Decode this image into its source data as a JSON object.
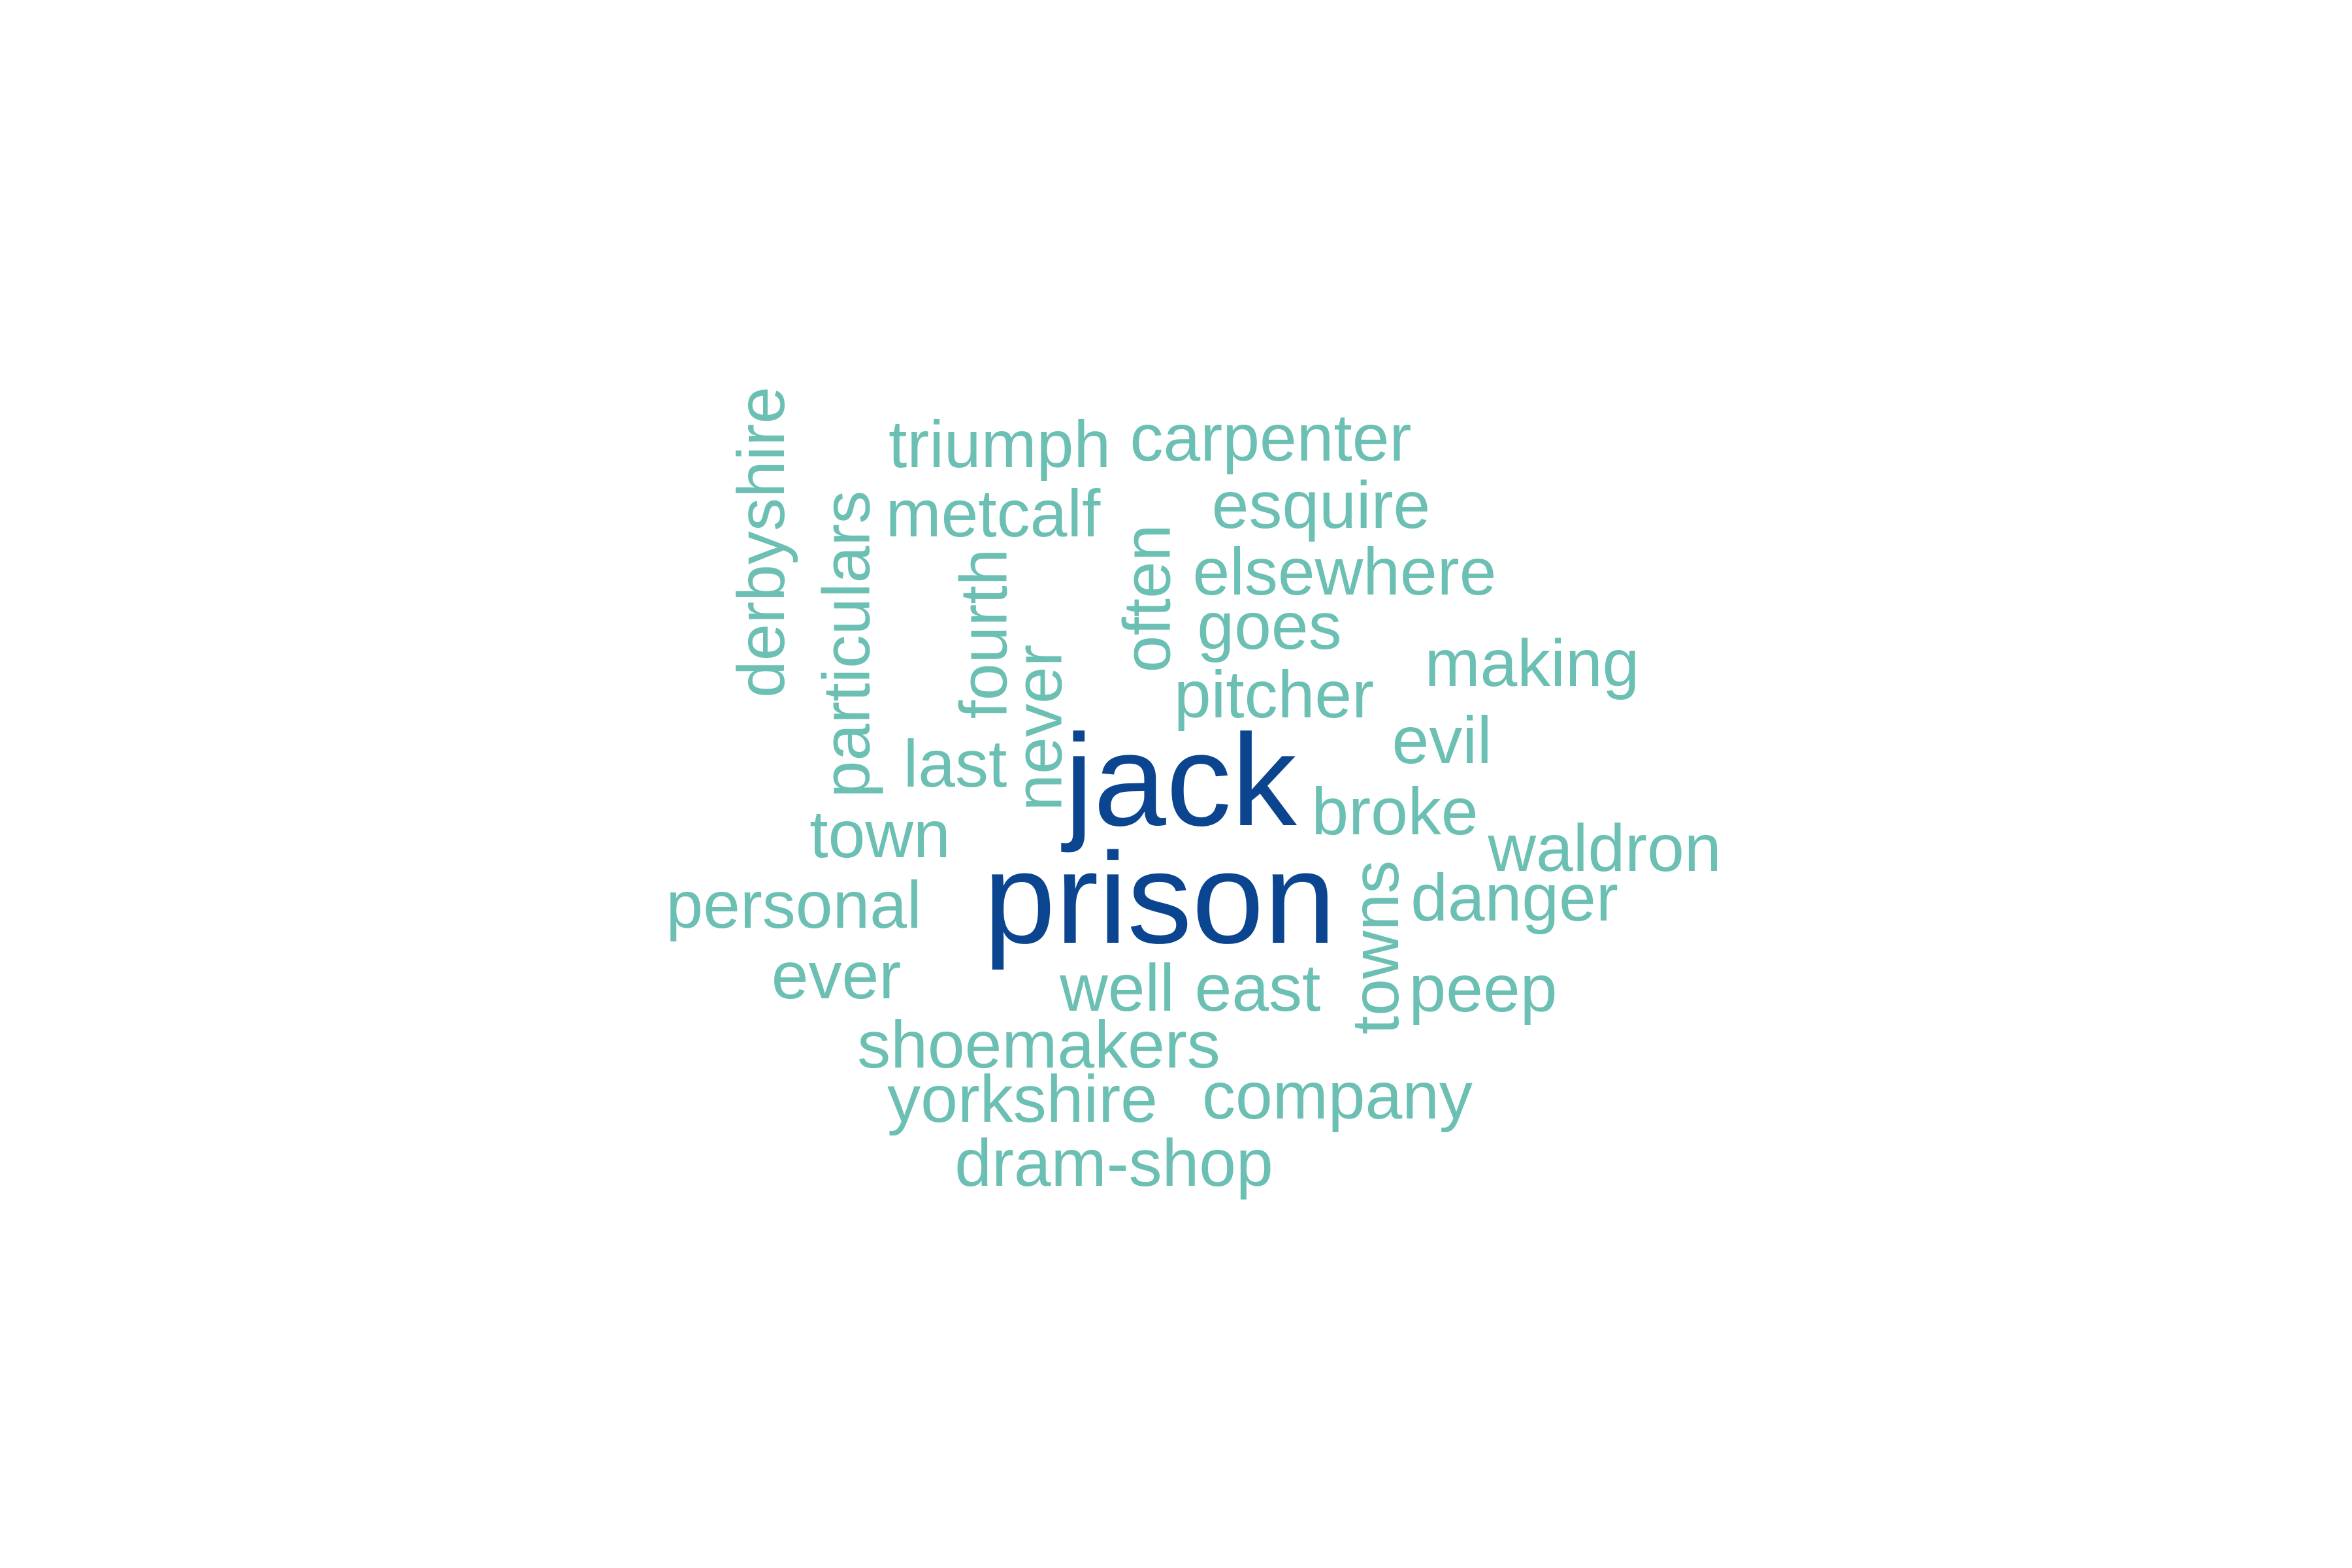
{
  "colors": {
    "background": "#ffffff",
    "primary": "#0b4590",
    "secondary": "#6bbfb3"
  },
  "words": [
    {
      "text": "jack",
      "weight": "primary"
    },
    {
      "text": "prison",
      "weight": "primary"
    },
    {
      "text": "derbyshire",
      "weight": "secondary"
    },
    {
      "text": "particulars",
      "weight": "secondary"
    },
    {
      "text": "triumph",
      "weight": "secondary"
    },
    {
      "text": "carpenter",
      "weight": "secondary"
    },
    {
      "text": "metcalf",
      "weight": "secondary"
    },
    {
      "text": "esquire",
      "weight": "secondary"
    },
    {
      "text": "fourth",
      "weight": "secondary"
    },
    {
      "text": "often",
      "weight": "secondary"
    },
    {
      "text": "elsewhere",
      "weight": "secondary"
    },
    {
      "text": "goes",
      "weight": "secondary"
    },
    {
      "text": "never",
      "weight": "secondary"
    },
    {
      "text": "making",
      "weight": "secondary"
    },
    {
      "text": "pitcher",
      "weight": "secondary"
    },
    {
      "text": "evil",
      "weight": "secondary"
    },
    {
      "text": "last",
      "weight": "secondary"
    },
    {
      "text": "broke",
      "weight": "secondary"
    },
    {
      "text": "town",
      "weight": "secondary"
    },
    {
      "text": "waldron",
      "weight": "secondary"
    },
    {
      "text": "personal",
      "weight": "secondary"
    },
    {
      "text": "towns",
      "weight": "secondary"
    },
    {
      "text": "danger",
      "weight": "secondary"
    },
    {
      "text": "ever",
      "weight": "secondary"
    },
    {
      "text": "well",
      "weight": "secondary"
    },
    {
      "text": "east",
      "weight": "secondary"
    },
    {
      "text": "peep",
      "weight": "secondary"
    },
    {
      "text": "shoemakers",
      "weight": "secondary"
    },
    {
      "text": "yorkshire",
      "weight": "secondary"
    },
    {
      "text": "company",
      "weight": "secondary"
    },
    {
      "text": "dram-shop",
      "weight": "secondary"
    }
  ]
}
